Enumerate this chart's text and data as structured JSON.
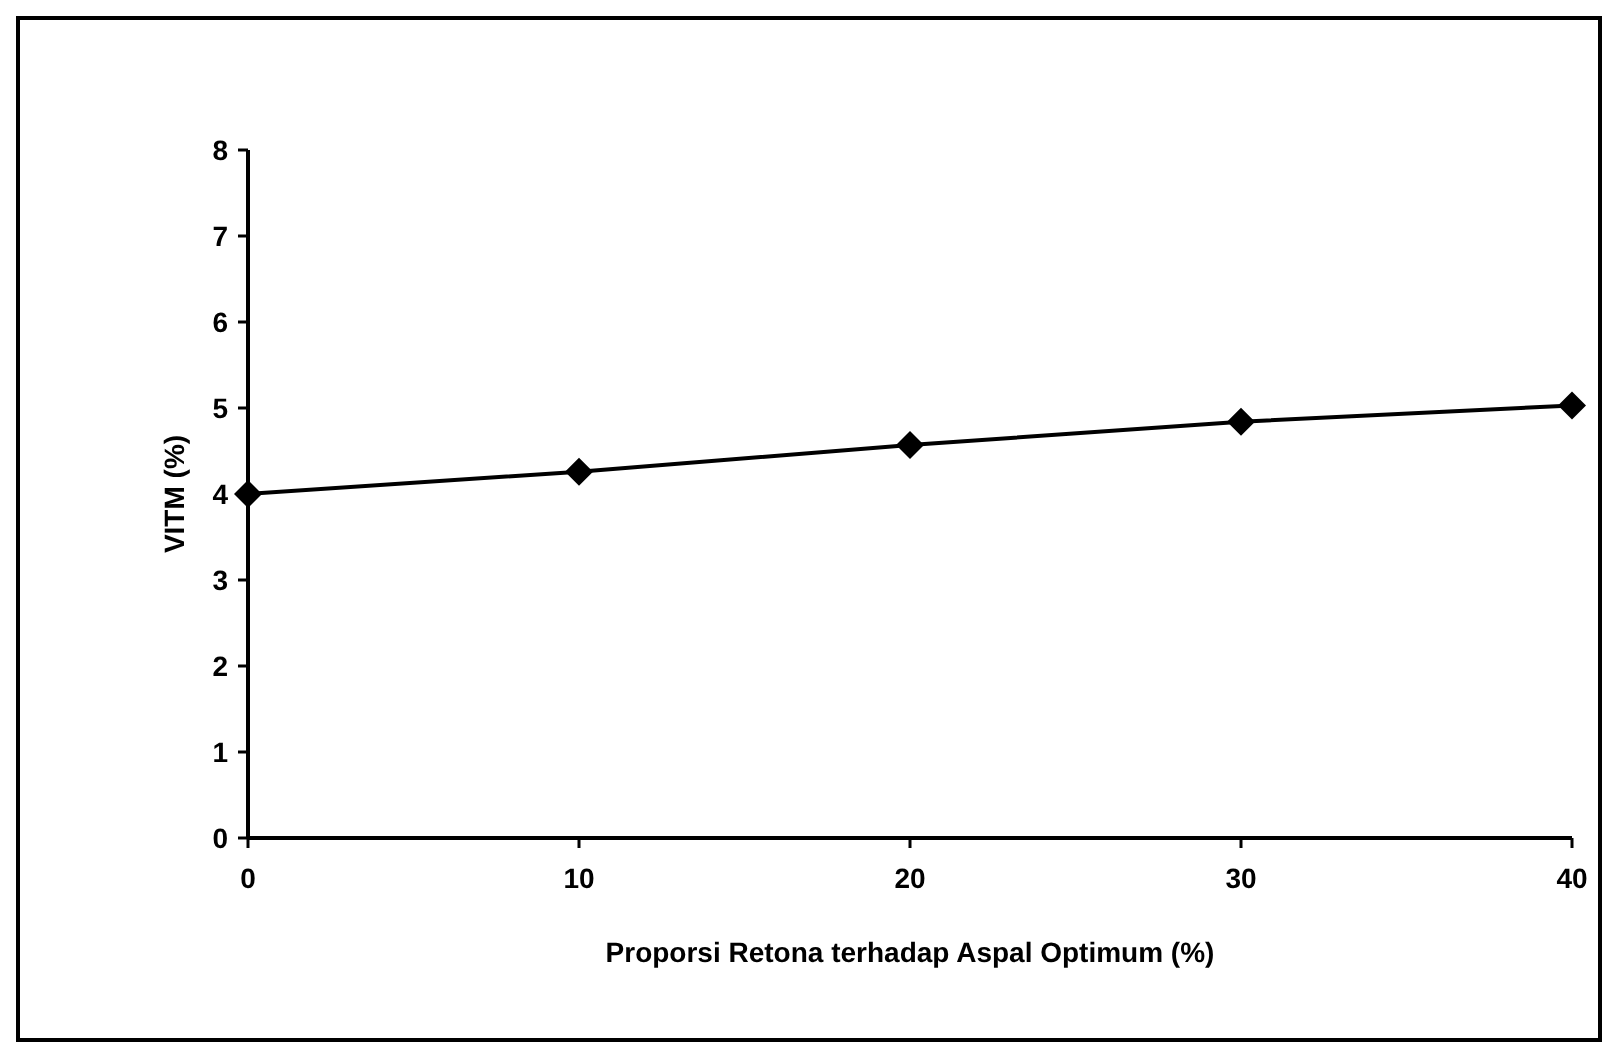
{
  "chart_data": {
    "type": "line",
    "xlabel": "Proporsi Retona terhadap Aspal Optimum (%)",
    "ylabel": "VITM (%)",
    "x": [
      0,
      10,
      20,
      30,
      40
    ],
    "series": [
      {
        "color": "#000000",
        "values": [
          4.0,
          4.26,
          4.57,
          4.84,
          5.03
        ]
      }
    ],
    "xlim": [
      0,
      40
    ],
    "xticks": [
      0,
      10,
      20,
      30,
      40
    ],
    "ylim": [
      0,
      8
    ],
    "yticks": [
      0,
      1,
      2,
      3,
      4,
      5,
      6,
      7,
      8
    ],
    "marker": "diamond",
    "line_style": "solid"
  }
}
